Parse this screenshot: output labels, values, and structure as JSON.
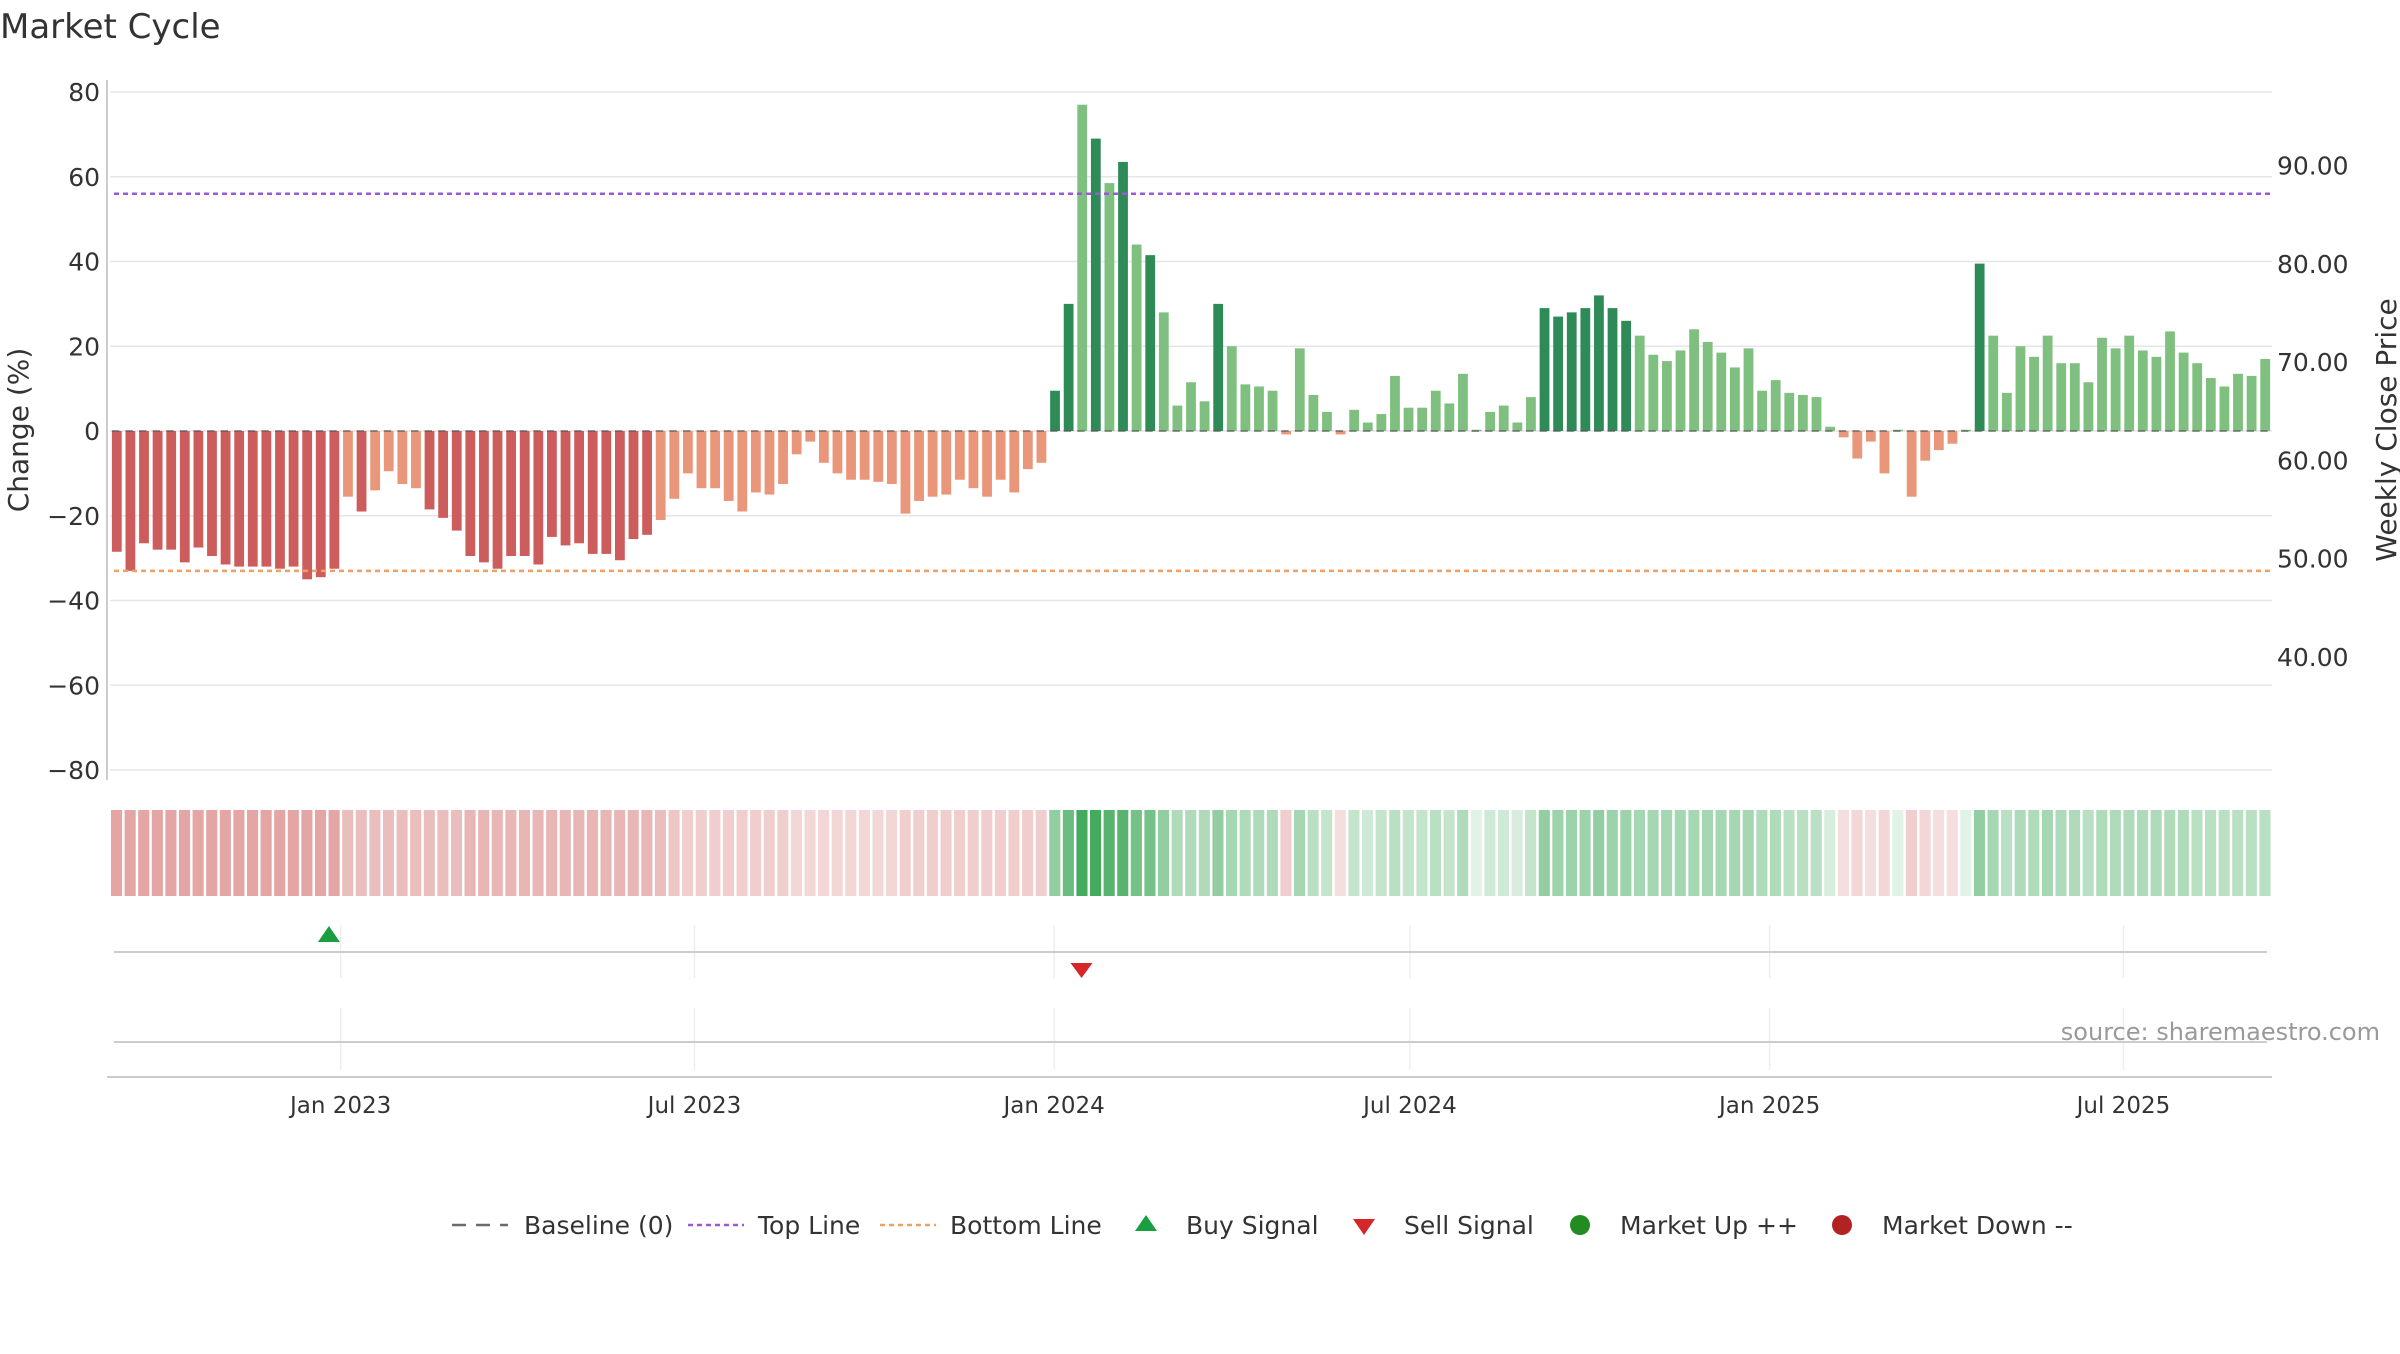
{
  "chart_data": {
    "type": "bar",
    "title": "Market Cycle",
    "ylabel": "Change (%)",
    "y2label": "Weekly Close Price",
    "source": "source: sharemaestro.com",
    "ylim": [
      -80,
      80
    ],
    "y_ticks": [
      80,
      60,
      40,
      20,
      0,
      -20,
      -40,
      -60,
      -80
    ],
    "y_tick_labels": [
      "80",
      "60",
      "40",
      "20",
      "0",
      "−20",
      "−40",
      "−60",
      "−80"
    ],
    "y2_ticks": [
      40,
      50,
      60,
      70,
      80,
      90
    ],
    "y2_tick_labels": [
      "40.00",
      "50.00",
      "60.00",
      "70.00",
      "80.00",
      "90.00"
    ],
    "y2lim": [
      28.5,
      97.5
    ],
    "x_start": "2022-09-05",
    "x_end": "2025-09-15",
    "x_ticks": [
      "2023-01-01",
      "2023-07-01",
      "2024-01-01",
      "2024-07-01",
      "2025-01-01",
      "2025-07-01"
    ],
    "x_tick_labels": [
      "Jan 2023",
      "Jul 2023",
      "Jan 2024",
      "Jul 2024",
      "Jan 2025",
      "Jul 2025"
    ],
    "grid": true,
    "legend_position": "bottom",
    "top_line": 56,
    "bottom_line": -33,
    "values": [
      -28.5,
      -33,
      -26.5,
      -28,
      -28,
      -31,
      -27.5,
      -29.5,
      -31.5,
      -32,
      -32,
      -32,
      -32.5,
      -32,
      -35,
      -34.5,
      -32.5,
      -15.5,
      -19,
      -14,
      -9.5,
      -12.5,
      -13.5,
      -18.5,
      -20.5,
      -23.5,
      -29.5,
      -31,
      -32.5,
      -29.5,
      -29.5,
      -31.5,
      -25,
      -27,
      -26.5,
      -29,
      -29,
      -30.5,
      -25.5,
      -24.5,
      -21,
      -16,
      -10,
      -13.5,
      -13.5,
      -16.5,
      -19,
      -14.5,
      -15,
      -12.5,
      -5.5,
      -2.5,
      -7.5,
      -10,
      -11.5,
      -11.5,
      -12,
      -12.5,
      -19.5,
      -16.5,
      -15.5,
      -15,
      -11.5,
      -13.5,
      -15.5,
      -11.5,
      -14.5,
      -9,
      -7.5,
      9.5,
      30,
      77,
      69,
      58.5,
      63.5,
      44,
      41.5,
      28,
      6,
      11.5,
      7,
      30,
      20,
      11,
      10.5,
      9.5,
      -0.8,
      19.5,
      8.5,
      4.5,
      -0.8,
      5,
      2,
      4,
      13,
      5.5,
      5.5,
      9.5,
      6.5,
      13.5,
      0.3,
      4.5,
      6,
      2,
      8,
      29,
      27,
      28,
      29,
      32,
      29,
      26,
      22.5,
      18,
      16.5,
      19,
      24,
      21,
      18.5,
      15,
      19.5,
      9.5,
      12,
      9,
      8.5,
      8,
      1,
      -1.5,
      -6.5,
      -2.5,
      -10,
      0.3,
      -15.5,
      -7,
      -4.5,
      -3,
      0.3,
      39.5,
      22.5,
      9,
      20,
      17.5,
      22.5,
      16,
      16,
      11.5,
      22,
      19.5,
      22.5,
      19,
      17.5,
      23.5,
      18.5,
      16,
      12.5,
      10.5,
      13.5,
      13,
      17
    ],
    "strength": [
      0.55,
      0.55,
      0.55,
      0.55,
      0.55,
      0.55,
      0.55,
      0.55,
      0.55,
      0.55,
      0.55,
      0.55,
      0.55,
      0.55,
      0.55,
      0.55,
      0.55,
      0.4,
      0.4,
      0.4,
      0.4,
      0.4,
      0.4,
      0.4,
      0.4,
      0.4,
      0.45,
      0.45,
      0.45,
      0.45,
      0.45,
      0.45,
      0.45,
      0.45,
      0.45,
      0.45,
      0.45,
      0.45,
      0.45,
      0.45,
      0.4,
      0.35,
      0.3,
      0.3,
      0.3,
      0.3,
      0.3,
      0.3,
      0.3,
      0.3,
      0.25,
      0.25,
      0.25,
      0.25,
      0.25,
      0.25,
      0.25,
      0.25,
      0.3,
      0.3,
      0.3,
      0.3,
      0.3,
      0.3,
      0.3,
      0.3,
      0.3,
      0.3,
      0.3,
      0.55,
      0.75,
      0.95,
      0.95,
      0.85,
      0.85,
      0.7,
      0.7,
      0.55,
      0.4,
      0.4,
      0.4,
      0.55,
      0.45,
      0.4,
      0.4,
      0.4,
      0.3,
      0.45,
      0.35,
      0.3,
      0.2,
      0.3,
      0.25,
      0.3,
      0.35,
      0.3,
      0.3,
      0.35,
      0.3,
      0.4,
      0.15,
      0.25,
      0.25,
      0.2,
      0.3,
      0.55,
      0.5,
      0.5,
      0.5,
      0.55,
      0.5,
      0.5,
      0.45,
      0.45,
      0.45,
      0.45,
      0.45,
      0.45,
      0.45,
      0.45,
      0.45,
      0.4,
      0.4,
      0.35,
      0.35,
      0.35,
      0.2,
      0.2,
      0.25,
      0.2,
      0.25,
      0.15,
      0.3,
      0.25,
      0.2,
      0.2,
      0.15,
      0.55,
      0.45,
      0.35,
      0.4,
      0.4,
      0.45,
      0.4,
      0.4,
      0.35,
      0.4,
      0.4,
      0.4,
      0.4,
      0.4,
      0.4,
      0.4,
      0.35,
      0.35,
      0.35,
      0.35,
      0.35,
      0.35
    ],
    "buy_signals": [
      {
        "date": "2022-12-26"
      }
    ],
    "sell_signals": [
      {
        "date": "2024-01-15"
      }
    ],
    "series": [
      {
        "name": "Baseline (0)",
        "color": "#6b6b6b"
      },
      {
        "name": "Top Line",
        "color": "#9b59d6"
      },
      {
        "name": "Bottom Line",
        "color": "#f0a060"
      },
      {
        "name": "Buy Signal",
        "color": "#1a9e3f"
      },
      {
        "name": "Sell Signal",
        "color": "#d62728"
      },
      {
        "name": "Market Up ++",
        "color": "#228b22"
      },
      {
        "name": "Market Down --",
        "color": "#b22222"
      }
    ],
    "colors": {
      "up_dark": "#2e8b57",
      "up_light": "#7fbf7f",
      "down_dark": "#cd5c5c",
      "down_light": "#e9967a",
      "band_up": "#3aa655",
      "band_down": "#cd5c5c",
      "grid": "#e6e6e6",
      "axis": "#cccccc"
    }
  }
}
